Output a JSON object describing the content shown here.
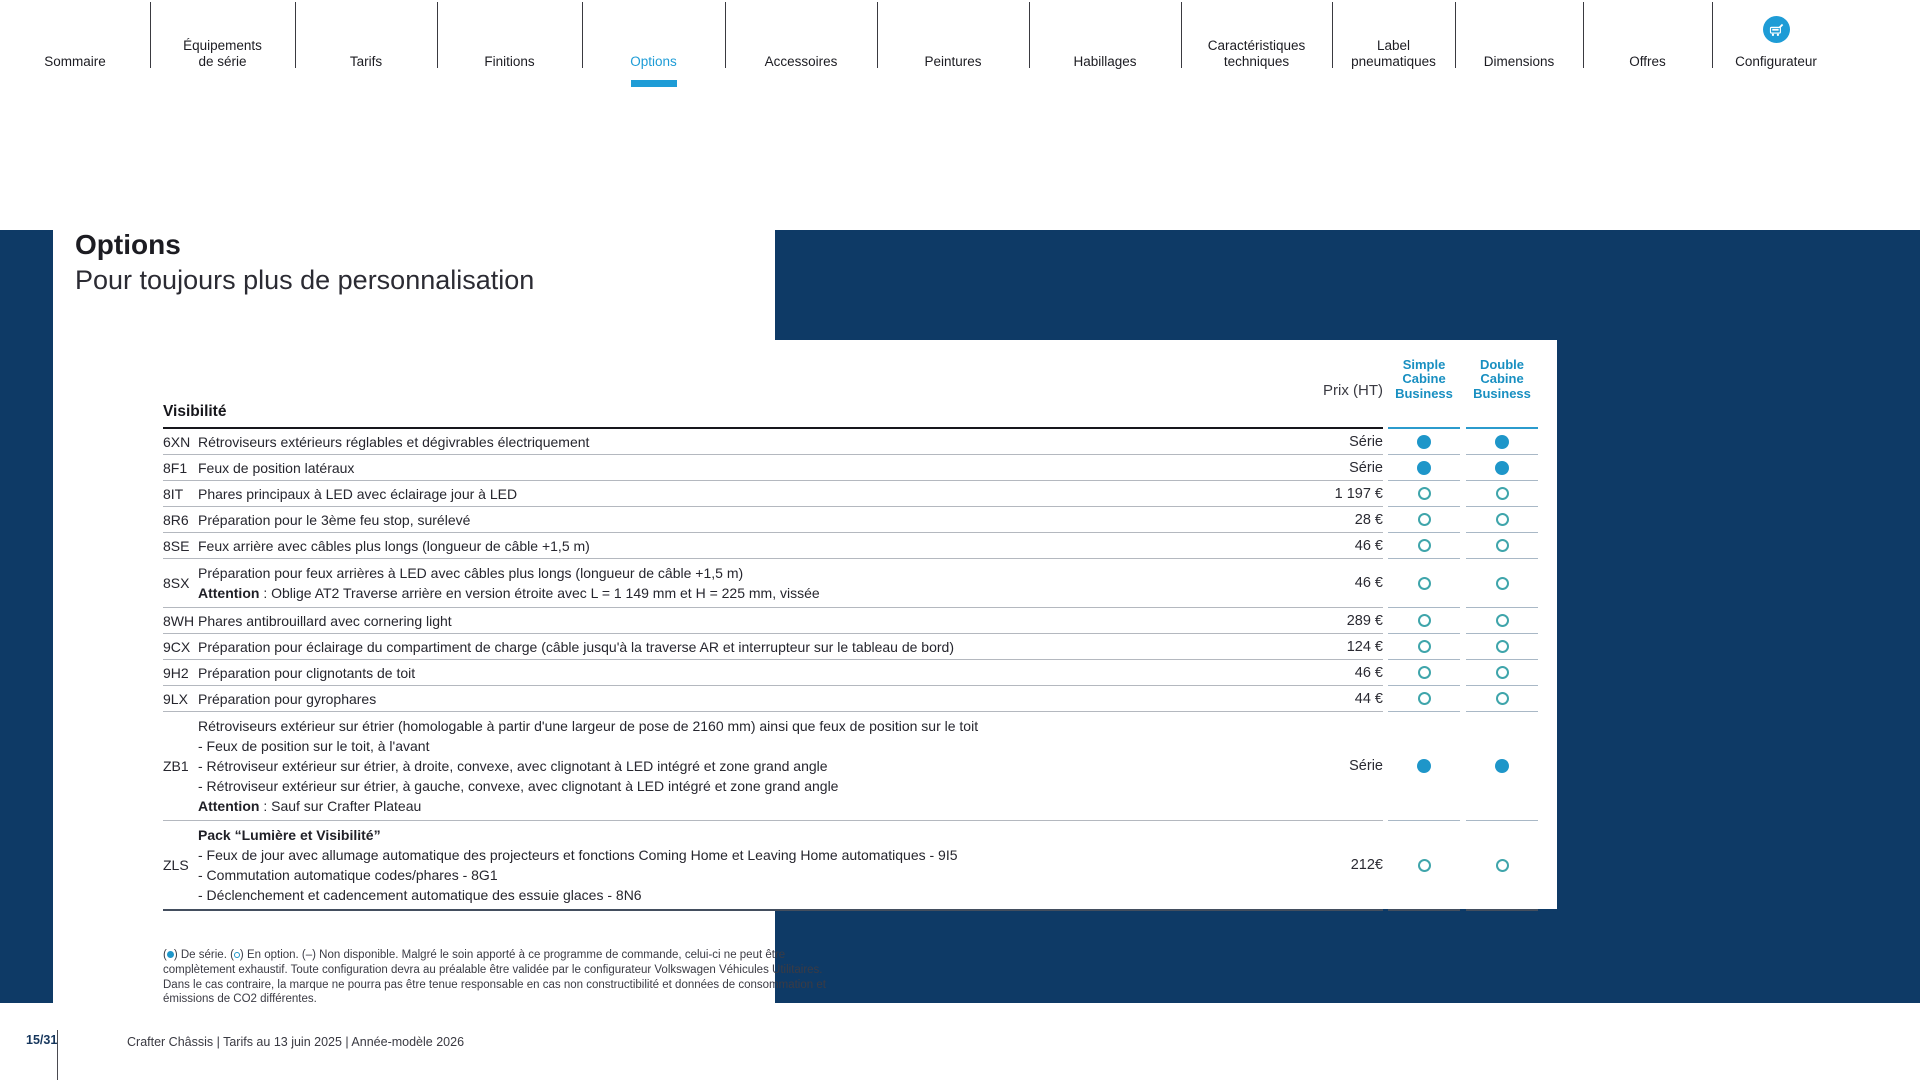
{
  "nav": {
    "items": [
      {
        "label": "Sommaire",
        "active": false
      },
      {
        "label": "Équipements\nde série",
        "active": false
      },
      {
        "label": "Tarifs",
        "active": false
      },
      {
        "label": "Finitions",
        "active": false
      },
      {
        "label": "Options",
        "active": true
      },
      {
        "label": "Accessoires",
        "active": false
      },
      {
        "label": "Peintures",
        "active": false
      },
      {
        "label": "Habillages",
        "active": false
      },
      {
        "label": "Caractéristiques\ntechniques",
        "active": false
      },
      {
        "label": "Label\npneumatiques",
        "active": false
      },
      {
        "label": "Dimensions",
        "active": false
      },
      {
        "label": "Offres",
        "active": false
      },
      {
        "label": "Configurateur",
        "active": false,
        "icon": "configurator-van-icon"
      }
    ]
  },
  "page": {
    "title": "Options",
    "subtitle": "Pour toujours plus de personnalisation"
  },
  "table": {
    "section": "Visibilité",
    "price_header": "Prix (HT)",
    "columns": [
      "Simple\nCabine\nBusiness",
      "Double\nCabine\nBusiness"
    ],
    "legend_values": {
      "filled": "De série",
      "open": "En option"
    },
    "rows": [
      {
        "code": "6XN",
        "lines": [
          [
            {
              "t": "Rétroviseurs extérieurs réglables et dégivrables électriquement"
            }
          ]
        ],
        "price": "Série",
        "simple": "filled",
        "double": "filled"
      },
      {
        "code": "8F1",
        "lines": [
          [
            {
              "t": "Feux de position latéraux"
            }
          ]
        ],
        "price": "Série",
        "simple": "filled",
        "double": "filled"
      },
      {
        "code": "8IT",
        "lines": [
          [
            {
              "t": "Phares principaux à LED avec éclairage jour à LED"
            }
          ]
        ],
        "price": "1 197 €",
        "simple": "open",
        "double": "open"
      },
      {
        "code": "8R6",
        "lines": [
          [
            {
              "t": "Préparation pour le 3ème feu stop, surélevé"
            }
          ]
        ],
        "price": "28 €",
        "simple": "open",
        "double": "open"
      },
      {
        "code": "8SE",
        "lines": [
          [
            {
              "t": "Feux arrière avec câbles plus longs (longueur de câble +1,5 m)"
            }
          ]
        ],
        "price": "46 €",
        "simple": "open",
        "double": "open"
      },
      {
        "code": "8SX",
        "lines": [
          [
            {
              "t": "Préparation pour feux arrières à LED avec câbles plus longs (longueur de câble +1,5 m)"
            }
          ],
          [
            {
              "t": "Attention",
              "b": 1
            },
            {
              "t": " : Oblige AT2  Traverse arrière en version étroite avec L = 1 149 mm et H = 225 mm, vissée"
            }
          ]
        ],
        "price": "46 €",
        "simple": "open",
        "double": "open"
      },
      {
        "code": "8WH",
        "lines": [
          [
            {
              "t": "Phares antibrouillard avec cornering light"
            }
          ]
        ],
        "price": "289 €",
        "simple": "open",
        "double": "open"
      },
      {
        "code": "9CX",
        "lines": [
          [
            {
              "t": "Préparation pour éclairage du compartiment de charge (câble jusqu'à la traverse AR et interrupteur sur le tableau de bord)"
            }
          ]
        ],
        "price": "124 €",
        "simple": "open",
        "double": "open"
      },
      {
        "code": "9H2",
        "lines": [
          [
            {
              "t": "Préparation pour clignotants de toit"
            }
          ]
        ],
        "price": "46 €",
        "simple": "open",
        "double": "open"
      },
      {
        "code": "9LX",
        "lines": [
          [
            {
              "t": "Préparation pour gyrophares"
            }
          ]
        ],
        "price": "44 €",
        "simple": "open",
        "double": "open"
      },
      {
        "code": "ZB1",
        "lines": [
          [
            {
              "t": "Rétroviseurs extérieur sur étrier (homologable à partir d'une largeur de pose de 2160 mm) ainsi que feux de position sur le toit"
            }
          ],
          [
            {
              "t": "- Feux de position sur le toit, à l'avant"
            }
          ],
          [
            {
              "t": "- Rétroviseur extérieur sur étrier, à droite, convexe, avec clignotant à LED intégré et zone grand angle"
            }
          ],
          [
            {
              "t": "- Rétroviseur extérieur sur étrier, à gauche, convexe, avec clignotant à LED intégré et zone grand angle"
            }
          ],
          [
            {
              "t": "Attention",
              "b": 1
            },
            {
              "t": " : Sauf sur Crafter Plateau"
            }
          ]
        ],
        "price": "Série",
        "simple": "filled",
        "double": "filled"
      },
      {
        "code": "ZLS",
        "lines": [
          [
            {
              "t": "Pack “Lumière et Visibilité”",
              "b": 1
            }
          ],
          [
            {
              "t": "- Feux de jour avec allumage automatique des projecteurs et fonctions Coming Home et Leaving Home automatiques - 9I5"
            }
          ],
          [
            {
              "t": "- Commutation automatique codes/phares - 8G1"
            }
          ],
          [
            {
              "t": "- Déclenchement et cadencement automatique des essuie glaces - 8N6"
            }
          ]
        ],
        "price": "212€",
        "simple": "open",
        "double": "open"
      }
    ]
  },
  "footnote": {
    "parts": [
      {
        "t": "("
      },
      {
        "dot": "filled"
      },
      {
        "t": ") De série.  ("
      },
      {
        "dot": "open"
      },
      {
        "t": ") En option. (–) Non disponible. Malgré le soin apporté à ce programme de commande, celui-ci ne peut être complètement exhaustif. Toute configuration devra au préalable être validée par le configurateur Volkswagen Véhicules Utilitaires. Dans le cas contraire, la marque ne pourra pas être tenue responsable en cas non constructibilité et données de consommation et émissions de CO2 différentes."
      }
    ]
  },
  "footer": {
    "page_number": "15/31",
    "text": "Crafter Châssis | Tarifs au 13 juin 2025 | Année-modèle 2026"
  },
  "colors": {
    "navy": "#0e3a66",
    "accent_blue": "#1e9cd6",
    "dot_filled": "#1e96c9",
    "dot_open_ring": "#3fa5ab",
    "header_blue_text": "#188fc1"
  }
}
